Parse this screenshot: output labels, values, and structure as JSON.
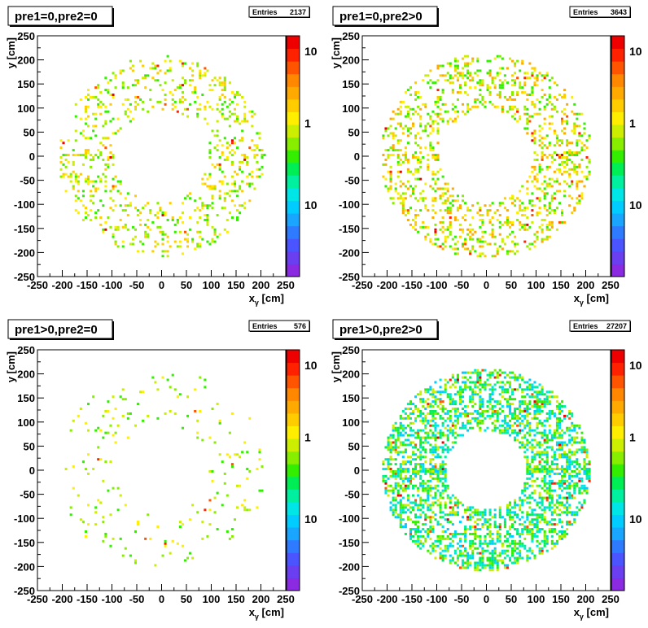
{
  "colors": {
    "palette": [
      "#8a2be2",
      "#6a3ff0",
      "#4b55ff",
      "#2f7bff",
      "#1aa6ff",
      "#00ccff",
      "#00e5e5",
      "#00f0a0",
      "#00ee55",
      "#33ee00",
      "#88ee00",
      "#ccee00",
      "#ffee00",
      "#ffcc00",
      "#ffaa00",
      "#ff8800",
      "#ff5500",
      "#ff2200",
      "#ee0000"
    ]
  },
  "chart_data": [
    {
      "type": "heatmap",
      "title": "pre1=0,pre2=0",
      "stats_label": "Entries",
      "entries": "2137",
      "xlabel": "x",
      "xlabel_sub": "γ",
      "xlabel_unit": " [cm]",
      "ylabel": "y",
      "ylabel_unit": " [cm]",
      "xlim": [
        -250,
        250
      ],
      "ylim": [
        -250,
        250
      ],
      "xticks": [
        "-250",
        "-200",
        "-150",
        "-100",
        "-50",
        "0",
        "50",
        "100",
        "150",
        "200",
        "250"
      ],
      "yticks": [
        "250",
        "200",
        "150",
        "100",
        "50",
        "0",
        "-50",
        "-100",
        "-150",
        "-200",
        "-250"
      ],
      "colorbar_labels": [
        "10",
        "1",
        "10"
      ],
      "ring": {
        "r_inner": 95,
        "r_outer": 208,
        "density": 0.22,
        "level_range": [
          9,
          13
        ]
      }
    },
    {
      "type": "heatmap",
      "title": "pre1=0,pre2>0",
      "stats_label": "Entries",
      "entries": "3643",
      "xlabel": "x",
      "xlabel_sub": "γ",
      "xlabel_unit": " [cm]",
      "ylabel": "y",
      "ylabel_unit": " [cm]",
      "xlim": [
        -250,
        250
      ],
      "ylim": [
        -250,
        250
      ],
      "xticks": [
        "-250",
        "-200",
        "-150",
        "-100",
        "-50",
        "0",
        "50",
        "100",
        "150",
        "200",
        "250"
      ],
      "yticks": [
        "250",
        "200",
        "150",
        "100",
        "50",
        "0",
        "-50",
        "-100",
        "-150",
        "-200",
        "-250"
      ],
      "colorbar_labels": [
        "10",
        "1",
        "10"
      ],
      "ring": {
        "r_inner": 95,
        "r_outer": 212,
        "density": 0.34,
        "level_range": [
          9,
          14
        ]
      }
    },
    {
      "type": "heatmap",
      "title": "pre1>0,pre2=0",
      "stats_label": "Entries",
      "entries": "576",
      "xlabel": "x",
      "xlabel_sub": "γ",
      "xlabel_unit": " [cm]",
      "ylabel": "y",
      "ylabel_unit": " [cm]",
      "xlim": [
        -250,
        250
      ],
      "ylim": [
        -250,
        250
      ],
      "xticks": [
        "-250",
        "-200",
        "-150",
        "-100",
        "-50",
        "0",
        "50",
        "100",
        "150",
        "200",
        "250"
      ],
      "yticks": [
        "250",
        "200",
        "150",
        "100",
        "50",
        "0",
        "-50",
        "-100",
        "-150",
        "-200",
        "-250"
      ],
      "colorbar_labels": [
        "10",
        "1",
        "10"
      ],
      "ring": {
        "r_inner": 95,
        "r_outer": 208,
        "density": 0.06,
        "level_range": [
          9,
          12
        ]
      }
    },
    {
      "type": "heatmap",
      "title": "pre1>0,pre2>0",
      "stats_label": "Entries",
      "entries": "27207",
      "xlabel": "x",
      "xlabel_sub": "γ",
      "xlabel_unit": " [cm]",
      "ylabel": "y",
      "ylabel_unit": " [cm]",
      "xlim": [
        -250,
        250
      ],
      "ylim": [
        -250,
        250
      ],
      "xticks": [
        "-250",
        "-200",
        "-150",
        "-100",
        "-50",
        "0",
        "50",
        "100",
        "150",
        "200",
        "250"
      ],
      "yticks": [
        "250",
        "200",
        "150",
        "100",
        "50",
        "0",
        "-50",
        "-100",
        "-150",
        "-200",
        "-250"
      ],
      "colorbar_labels": [
        "10",
        "1",
        "10"
      ],
      "ring": {
        "r_inner": 82,
        "r_outer": 210,
        "density": 0.62,
        "level_range": [
          5,
          11
        ]
      }
    }
  ]
}
